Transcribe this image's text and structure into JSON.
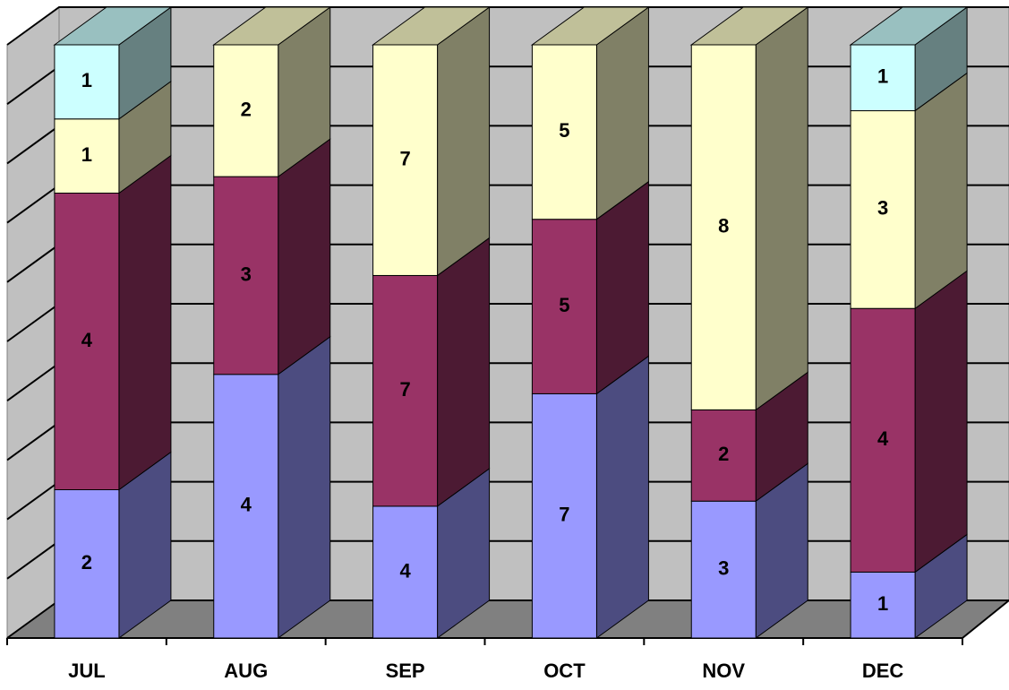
{
  "chart_data": {
    "type": "bar",
    "stacking": "percent",
    "categories": [
      "JUL",
      "AUG",
      "SEP",
      "OCT",
      "NOV",
      "DEC"
    ],
    "series": [
      {
        "color": "#9999ff",
        "side_color": "#4c4c80",
        "values": [
          2,
          4,
          4,
          7,
          3,
          1
        ]
      },
      {
        "color": "#993366",
        "side_color": "#4c1a33",
        "values": [
          4,
          3,
          7,
          5,
          2,
          4
        ]
      },
      {
        "color": "#ffffcc",
        "side_color": "#808066",
        "top_color": "#c0c099",
        "values": [
          1,
          2,
          7,
          5,
          8,
          3
        ]
      },
      {
        "color": "#ccffff",
        "side_color": "#668080",
        "top_color": "#99c0c0",
        "values": [
          1,
          null,
          null,
          null,
          null,
          1
        ]
      }
    ],
    "ylim": [
      0,
      100
    ],
    "yticks": [
      0,
      10,
      20,
      30,
      40,
      50,
      60,
      70,
      80,
      90,
      100
    ],
    "grid": true
  }
}
